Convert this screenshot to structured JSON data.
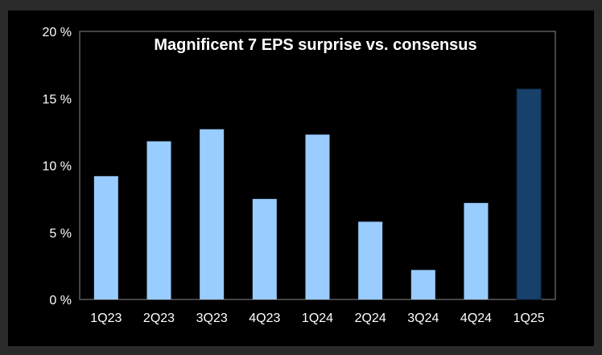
{
  "chart_data": {
    "type": "bar",
    "title": "Magnificent 7 EPS surprise vs. consensus",
    "xlabel": "",
    "ylabel": "",
    "categories": [
      "1Q23",
      "2Q23",
      "3Q23",
      "4Q23",
      "1Q24",
      "2Q24",
      "3Q24",
      "4Q24",
      "1Q25"
    ],
    "values": [
      9.2,
      11.8,
      12.7,
      7.5,
      12.3,
      5.8,
      2.2,
      7.2,
      15.7
    ],
    "ylim": [
      0,
      20
    ],
    "yticks": [
      0,
      5,
      10,
      15,
      20
    ],
    "ytick_labels": [
      "0 %",
      "5 %",
      "10 %",
      "15 %",
      "20 %"
    ],
    "grid": false,
    "colors": {
      "bar": "#99ccff",
      "highlight_bar": "#17406b",
      "highlight_index": 8,
      "background": "#000000",
      "frame": "#888888",
      "text": "#ffffff"
    }
  }
}
